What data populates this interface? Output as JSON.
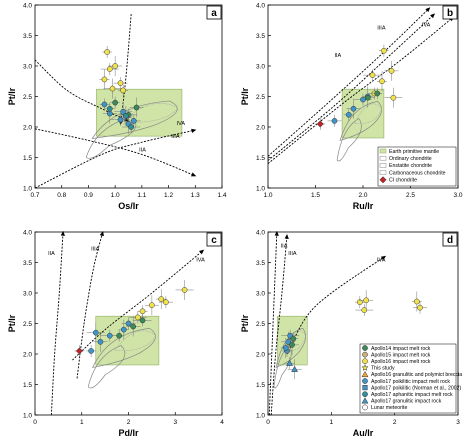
{
  "figure": {
    "panels": [
      "a",
      "b",
      "c",
      "d"
    ]
  },
  "chart_data": [
    {
      "id": "a",
      "type": "scatter",
      "panel_label": "a",
      "xlabel": "Os/Ir",
      "ylabel": "Pt/Ir",
      "xlim": [
        0.7,
        1.4
      ],
      "ylim": [
        1.0,
        4.0
      ],
      "xticks": [
        "0.7",
        "0.8",
        "0.9",
        "1.0",
        "1.1",
        "1.2",
        "1.3",
        "1.4"
      ],
      "yticks": [
        "1.0",
        "1.5",
        "2.0",
        "2.5",
        "3.0",
        "3.5",
        "4.0"
      ],
      "green_box": [
        0.93,
        1.25,
        1.85,
        2.62
      ],
      "trends": [
        {
          "label": "IIA",
          "points": [
            [
              1.06,
              3.85
            ],
            [
              1.05,
              3.3
            ],
            [
              1.04,
              2.8
            ],
            [
              1.03,
              2.4
            ],
            [
              1.02,
              2.05
            ]
          ],
          "label_at": [
            1.09,
            1.6
          ]
        },
        {
          "label": "IIIA",
          "points": [
            [
              0.7,
              1.97
            ],
            [
              0.9,
              1.78
            ],
            [
              1.1,
              1.55
            ],
            [
              1.3,
              1.2
            ]
          ],
          "label_at": [
            1.21,
            1.82
          ]
        },
        {
          "label": "IVA",
          "points": [
            [
              0.7,
              3.1
            ],
            [
              0.82,
              2.6
            ],
            [
              0.95,
              2.3
            ],
            [
              1.05,
              2.1
            ]
          ],
          "label_at": [
            1.23,
            2.03
          ]
        },
        {
          "label": "",
          "points": [
            [
              0.7,
              1.0
            ],
            [
              0.95,
              1.55
            ],
            [
              1.1,
              1.75
            ],
            [
              1.3,
              1.95
            ]
          ],
          "label_at": null
        }
      ],
      "series": [
        {
          "name": "Apollo16 impact melt rock",
          "x": [
            0.97,
            1.0,
            0.98,
            0.96,
            1.02,
            0.99,
            1.03
          ],
          "y": [
            3.23,
            3.0,
            2.95,
            2.78,
            2.72,
            2.63,
            2.6
          ]
        },
        {
          "name": "Apollo17 poikilitic impact melt rock",
          "x": [
            0.96,
            0.98,
            1.02,
            1.05,
            1.07,
            1.03
          ],
          "y": [
            2.37,
            2.22,
            2.12,
            2.05,
            2.1,
            2.25
          ]
        },
        {
          "name": "Apollo14 impact melt rock",
          "x": [
            1.0,
            1.08,
            1.05
          ],
          "y": [
            2.4,
            2.32,
            2.2
          ]
        },
        {
          "name": "Apollo17 aphanitic impact melt rock",
          "x": [
            0.98,
            1.04,
            1.06
          ],
          "y": [
            2.3,
            2.18,
            2.0
          ]
        }
      ]
    },
    {
      "id": "b",
      "type": "scatter",
      "panel_label": "b",
      "xlabel": "Ru/Ir",
      "ylabel": "Pt/Ir",
      "xlim": [
        1.0,
        3.0
      ],
      "ylim": [
        1.0,
        4.0
      ],
      "xticks": [
        "1.0",
        "1.5",
        "2.0",
        "2.5",
        "3.0"
      ],
      "yticks": [
        "1.0",
        "1.5",
        "2.0",
        "2.5",
        "3.0",
        "3.5",
        "4.0"
      ],
      "green_box": [
        1.78,
        2.22,
        1.82,
        2.62
      ],
      "trends": [
        {
          "label": "IIA",
          "points": [
            [
              1.0,
              1.52
            ],
            [
              1.6,
              2.35
            ],
            [
              2.2,
              3.2
            ],
            [
              2.7,
              3.95
            ]
          ],
          "label_at": [
            1.7,
            3.15
          ]
        },
        {
          "label": "IIIA",
          "points": [
            [
              1.0,
              1.45
            ],
            [
              1.7,
              2.35
            ],
            [
              2.3,
              3.2
            ],
            [
              2.75,
              3.85
            ]
          ],
          "label_at": [
            2.15,
            3.6
          ]
        },
        {
          "label": "IVA",
          "points": [
            [
              1.0,
              1.4
            ],
            [
              1.8,
              2.4
            ],
            [
              2.4,
              3.1
            ],
            [
              2.95,
              3.8
            ]
          ],
          "label_at": [
            2.62,
            3.65
          ]
        }
      ],
      "series": [
        {
          "name": "Apollo16 impact melt rock",
          "x": [
            2.22,
            2.3,
            2.1,
            2.2,
            2.12,
            2.32
          ],
          "y": [
            3.25,
            2.92,
            2.85,
            2.75,
            2.55,
            2.48
          ]
        },
        {
          "name": "Apollo17 poikilitic impact melt rock",
          "x": [
            1.85,
            1.9,
            2.0,
            2.05,
            1.7
          ],
          "y": [
            2.2,
            2.3,
            2.45,
            2.5,
            2.1
          ]
        },
        {
          "name": "Apollo14 impact melt rock",
          "x": [
            2.15,
            2.05
          ],
          "y": [
            2.55,
            2.48
          ]
        },
        {
          "name": "CI chondrite",
          "x": [
            1.55
          ],
          "y": [
            2.05
          ]
        }
      ],
      "legend": {
        "placement": "bottom-right",
        "items": [
          {
            "label": "Earth primitive mantle",
            "style": "green-box"
          },
          {
            "label": "Ordinary chondrite",
            "style": "outline"
          },
          {
            "label": "Enstatite chondrite",
            "style": "outline"
          },
          {
            "label": "Carbonaceous chondrite",
            "style": "outline"
          },
          {
            "label": "CI chondrite",
            "style": "red-diamond"
          }
        ]
      }
    },
    {
      "id": "c",
      "type": "scatter",
      "panel_label": "c",
      "xlabel": "Pd/Ir",
      "ylabel": "Pt/Ir",
      "xlim": [
        0,
        4
      ],
      "ylim": [
        1.0,
        4.0
      ],
      "xticks": [
        "0",
        "1",
        "2",
        "3",
        "4"
      ],
      "yticks": [
        "1.0",
        "1.5",
        "2.0",
        "2.5",
        "3.0",
        "3.5",
        "4.0"
      ],
      "green_box": [
        1.3,
        2.65,
        1.82,
        2.62
      ],
      "trends": [
        {
          "label": "IIA",
          "points": [
            [
              0.35,
              1.0
            ],
            [
              0.42,
              2.0
            ],
            [
              0.52,
              3.0
            ],
            [
              0.6,
              4.0
            ]
          ],
          "label_at": [
            0.28,
            3.62
          ]
        },
        {
          "label": "IIIA",
          "points": [
            [
              0.9,
              1.6
            ],
            [
              1.05,
              2.5
            ],
            [
              1.25,
              3.4
            ],
            [
              1.45,
              4.0
            ]
          ],
          "label_at": [
            1.2,
            3.7
          ]
        },
        {
          "label": "IVA",
          "points": [
            [
              0.8,
              1.9
            ],
            [
              1.5,
              2.4
            ],
            [
              2.5,
              3.0
            ],
            [
              3.6,
              3.7
            ]
          ],
          "label_at": [
            3.45,
            3.52
          ]
        }
      ],
      "series": [
        {
          "name": "Apollo16 impact melt rock",
          "x": [
            2.3,
            2.5,
            2.2,
            2.7,
            2.8,
            3.2
          ],
          "y": [
            2.7,
            2.8,
            2.6,
            2.9,
            2.85,
            3.05
          ]
        },
        {
          "name": "Apollo17 poikilitic impact melt rock",
          "x": [
            1.2,
            1.4,
            1.6,
            1.9,
            2.0,
            1.3
          ],
          "y": [
            2.05,
            2.2,
            2.3,
            2.4,
            2.5,
            2.35
          ]
        },
        {
          "name": "Apollo14 impact melt rock",
          "x": [
            1.8,
            2.1,
            2.3
          ],
          "y": [
            2.3,
            2.45,
            2.55
          ]
        },
        {
          "name": "CI chondrite",
          "x": [
            0.95
          ],
          "y": [
            2.05
          ]
        }
      ]
    },
    {
      "id": "d",
      "type": "scatter",
      "panel_label": "d",
      "xlabel": "Au/Ir",
      "ylabel": "Pt/Ir",
      "xlim": [
        0,
        3
      ],
      "ylim": [
        1.0,
        4.0
      ],
      "xticks": [
        "0",
        "1",
        "2",
        "3"
      ],
      "yticks": [
        "1.0",
        "1.5",
        "2.0",
        "2.5",
        "3.0",
        "3.5",
        "4.0"
      ],
      "green_box": [
        0.15,
        0.62,
        1.82,
        2.62
      ],
      "trends": [
        {
          "label": "IIA",
          "points": [
            [
              0.02,
              1.0
            ],
            [
              0.06,
              2.0
            ],
            [
              0.1,
              3.0
            ],
            [
              0.14,
              4.0
            ]
          ],
          "label_at": [
            0.2,
            3.75
          ]
        },
        {
          "label": "IIIA",
          "points": [
            [
              0.05,
              1.0
            ],
            [
              0.12,
              2.0
            ],
            [
              0.22,
              3.0
            ],
            [
              0.3,
              3.95
            ]
          ],
          "label_at": [
            0.32,
            3.62
          ]
        },
        {
          "label": "IVA",
          "points": [
            [
              0.3,
              2.0
            ],
            [
              0.6,
              2.6
            ],
            [
              1.0,
              3.0
            ],
            [
              1.85,
              3.6
            ]
          ],
          "label_at": [
            1.72,
            3.52
          ]
        }
      ],
      "series": [
        {
          "name": "Apollo16 impact melt rock",
          "x": [
            1.45,
            1.55,
            1.52,
            2.35,
            2.4
          ],
          "y": [
            2.85,
            2.88,
            2.72,
            2.86,
            2.76
          ]
        },
        {
          "name": "Apollo17 poikilitic impact melt rock",
          "x": [
            0.3,
            0.32,
            0.35,
            0.28
          ],
          "y": [
            2.05,
            2.2,
            2.3,
            2.1
          ]
        },
        {
          "name": "Apollo14 impact melt rock",
          "x": [
            0.4,
            0.38
          ],
          "y": [
            2.25,
            2.15
          ]
        },
        {
          "name": "Apollo17 granulitic impact rock",
          "x": [
            0.34,
            0.42
          ],
          "y": [
            1.85,
            1.75
          ]
        }
      ],
      "legend": {
        "placement": "bottom-right",
        "items": [
          {
            "label": "Apollo14 impact melt rock",
            "style": "green-circle"
          },
          {
            "label": "Apollo15 impact melt rock",
            "style": "tan-circle"
          },
          {
            "label": "Apollo16 impact melt rock",
            "style": "yellow-circle"
          },
          {
            "label": "This study",
            "style": "yellow-star"
          },
          {
            "label": "Apollo16 granulitic and polymict breccia",
            "style": "orange-triangle"
          },
          {
            "label": "Apollo17 poikilitic impact melt rock",
            "style": "blue-circle"
          },
          {
            "label": "Apollo17 poikilitic (Norman et al., 2002)",
            "style": "blue-square"
          },
          {
            "label": "Apollo17 aphanitic impact melt rock",
            "style": "teal-circle"
          },
          {
            "label": "Apollo17 granulitic impact rock",
            "style": "blue-triangle"
          },
          {
            "label": "Lunar meteorite",
            "style": "white-circle"
          }
        ]
      }
    }
  ],
  "colors": {
    "green_box": "#cfe4a6",
    "green_box_edge": "#8fb05e",
    "apollo14": "#3b8b5a",
    "apollo15": "#c8b07a",
    "apollo16": "#f2e24a",
    "apollo17": "#3f95c9",
    "apollo17_aph": "#2f8f9a",
    "ci": "#c0252b",
    "trend": "#000000",
    "outline": "#888888"
  }
}
